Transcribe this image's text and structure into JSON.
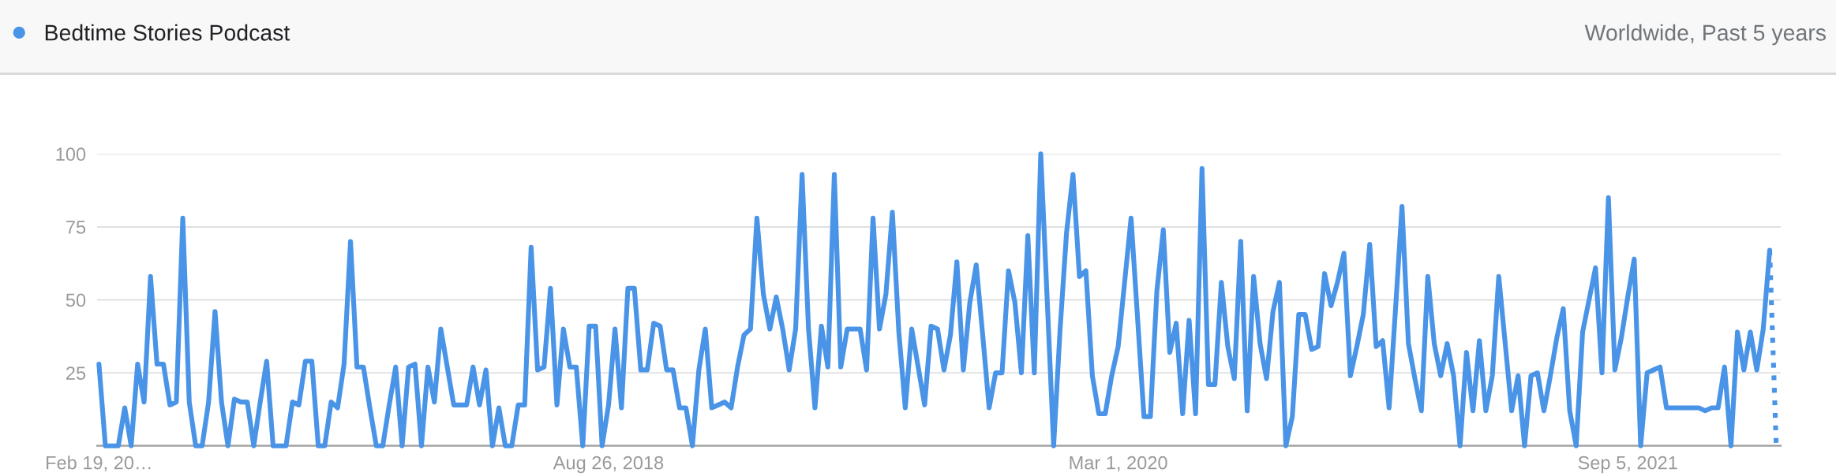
{
  "chart_data": {
    "type": "line",
    "subtitle": "Worldwide, Past 5 years",
    "x": [
      "2017-02-19",
      "2017-02-26",
      "2017-03-05",
      "2017-03-12",
      "2017-03-19",
      "2017-03-26",
      "2017-04-02",
      "2017-04-09",
      "2017-04-16",
      "2017-04-23",
      "2017-04-30",
      "2017-05-07",
      "2017-05-14",
      "2017-05-21",
      "2017-05-28",
      "2017-06-04",
      "2017-06-11",
      "2017-06-18",
      "2017-06-25",
      "2017-07-02",
      "2017-07-09",
      "2017-07-16",
      "2017-07-23",
      "2017-07-30",
      "2017-08-06",
      "2017-08-13",
      "2017-08-20",
      "2017-08-27",
      "2017-09-03",
      "2017-09-10",
      "2017-09-17",
      "2017-09-24",
      "2017-10-01",
      "2017-10-08",
      "2017-10-15",
      "2017-10-22",
      "2017-10-29",
      "2017-11-05",
      "2017-11-12",
      "2017-11-19",
      "2017-11-26",
      "2017-12-03",
      "2017-12-10",
      "2017-12-17",
      "2017-12-24",
      "2017-12-31",
      "2018-01-07",
      "2018-01-14",
      "2018-01-21",
      "2018-01-28",
      "2018-02-04",
      "2018-02-11",
      "2018-02-18",
      "2018-02-25",
      "2018-03-04",
      "2018-03-11",
      "2018-03-18",
      "2018-03-25",
      "2018-04-01",
      "2018-04-08",
      "2018-04-15",
      "2018-04-22",
      "2018-04-29",
      "2018-05-06",
      "2018-05-13",
      "2018-05-20",
      "2018-05-27",
      "2018-06-03",
      "2018-06-10",
      "2018-06-17",
      "2018-06-24",
      "2018-07-01",
      "2018-07-08",
      "2018-07-15",
      "2018-07-22",
      "2018-07-29",
      "2018-08-05",
      "2018-08-12",
      "2018-08-19",
      "2018-08-26",
      "2018-09-02",
      "2018-09-09",
      "2018-09-16",
      "2018-09-23",
      "2018-09-30",
      "2018-10-07",
      "2018-10-14",
      "2018-10-21",
      "2018-10-28",
      "2018-11-04",
      "2018-11-11",
      "2018-11-18",
      "2018-11-25",
      "2018-12-02",
      "2018-12-09",
      "2018-12-16",
      "2018-12-23",
      "2018-12-30",
      "2019-01-06",
      "2019-01-13",
      "2019-01-20",
      "2019-01-27",
      "2019-02-03",
      "2019-02-10",
      "2019-02-17",
      "2019-02-24",
      "2019-03-03",
      "2019-03-10",
      "2019-03-17",
      "2019-03-24",
      "2019-03-31",
      "2019-04-07",
      "2019-04-14",
      "2019-04-21",
      "2019-04-28",
      "2019-05-05",
      "2019-05-12",
      "2019-05-19",
      "2019-05-26",
      "2019-06-02",
      "2019-06-09",
      "2019-06-16",
      "2019-06-23",
      "2019-06-30",
      "2019-07-07",
      "2019-07-14",
      "2019-07-21",
      "2019-07-28",
      "2019-08-04",
      "2019-08-11",
      "2019-08-18",
      "2019-08-25",
      "2019-09-01",
      "2019-09-08",
      "2019-09-15",
      "2019-09-22",
      "2019-09-29",
      "2019-10-06",
      "2019-10-13",
      "2019-10-20",
      "2019-10-27",
      "2019-11-03",
      "2019-11-10",
      "2019-11-17",
      "2019-11-24",
      "2019-12-01",
      "2019-12-08",
      "2019-12-15",
      "2019-12-22",
      "2019-12-29",
      "2020-01-05",
      "2020-01-12",
      "2020-01-19",
      "2020-01-26",
      "2020-02-02",
      "2020-02-09",
      "2020-02-16",
      "2020-02-23",
      "2020-03-01",
      "2020-03-08",
      "2020-03-15",
      "2020-03-22",
      "2020-03-29",
      "2020-04-05",
      "2020-04-12",
      "2020-04-19",
      "2020-04-26",
      "2020-05-03",
      "2020-05-10",
      "2020-05-17",
      "2020-05-24",
      "2020-05-31",
      "2020-06-07",
      "2020-06-14",
      "2020-06-21",
      "2020-06-28",
      "2020-07-05",
      "2020-07-12",
      "2020-07-19",
      "2020-07-26",
      "2020-08-02",
      "2020-08-09",
      "2020-08-16",
      "2020-08-23",
      "2020-08-30",
      "2020-09-06",
      "2020-09-13",
      "2020-09-20",
      "2020-09-27",
      "2020-10-04",
      "2020-10-11",
      "2020-10-18",
      "2020-10-25",
      "2020-11-01",
      "2020-11-08",
      "2020-11-15",
      "2020-11-22",
      "2020-11-29",
      "2020-12-06",
      "2020-12-13",
      "2020-12-20",
      "2020-12-27",
      "2021-01-03",
      "2021-01-10",
      "2021-01-17",
      "2021-01-24",
      "2021-01-31",
      "2021-02-07",
      "2021-02-14",
      "2021-02-21",
      "2021-02-28",
      "2021-03-07",
      "2021-03-14",
      "2021-03-21",
      "2021-03-28",
      "2021-04-04",
      "2021-04-11",
      "2021-04-18",
      "2021-04-25",
      "2021-05-02",
      "2021-05-09",
      "2021-05-16",
      "2021-05-23",
      "2021-05-30",
      "2021-06-06",
      "2021-06-13",
      "2021-06-20",
      "2021-06-27",
      "2021-07-04",
      "2021-07-11",
      "2021-07-18",
      "2021-07-25",
      "2021-08-01",
      "2021-08-08",
      "2021-08-15",
      "2021-08-22",
      "2021-08-29",
      "2021-09-05",
      "2021-09-12",
      "2021-09-19",
      "2021-09-26",
      "2021-10-03",
      "2021-10-10",
      "2021-10-17",
      "2021-10-24",
      "2021-10-31",
      "2021-11-07",
      "2021-11-14",
      "2021-11-21",
      "2021-11-28",
      "2021-12-05",
      "2021-12-12",
      "2021-12-19",
      "2021-12-26",
      "2022-01-02",
      "2022-01-09",
      "2022-01-16",
      "2022-01-23",
      "2022-01-30",
      "2022-02-06"
    ],
    "series": [
      {
        "name": "Bedtime Stories Podcast",
        "color": "#4a94e8",
        "line_style": "solid",
        "values": [
          28,
          0,
          0,
          0,
          13,
          0,
          28,
          15,
          58,
          28,
          28,
          14,
          15,
          78,
          15,
          0,
          0,
          15,
          46,
          15,
          0,
          16,
          15,
          15,
          0,
          15,
          29,
          0,
          0,
          0,
          15,
          14,
          29,
          29,
          0,
          0,
          15,
          13,
          28,
          70,
          27,
          27,
          13,
          0,
          0,
          14,
          27,
          0,
          27,
          28,
          0,
          27,
          15,
          40,
          27,
          14,
          14,
          14,
          27,
          14,
          26,
          0,
          13,
          0,
          0,
          14,
          14,
          68,
          26,
          27,
          54,
          14,
          40,
          27,
          27,
          0,
          41,
          41,
          0,
          14,
          40,
          13,
          54,
          54,
          26,
          26,
          42,
          41,
          26,
          26,
          13,
          13,
          0,
          26,
          40,
          13,
          14,
          15,
          13,
          27,
          38,
          40,
          78,
          52,
          40,
          51,
          40,
          26,
          40,
          93,
          40,
          13,
          41,
          27,
          93,
          27,
          40,
          40,
          40,
          26,
          78,
          40,
          52,
          80,
          39,
          13,
          40,
          27,
          14,
          41,
          40,
          26,
          38,
          63,
          26,
          49,
          62,
          38,
          13,
          25,
          25,
          60,
          49,
          25,
          72,
          25,
          100,
          50,
          0,
          40,
          73,
          93,
          58,
          60,
          24,
          11,
          11,
          24,
          34,
          56,
          78,
          44,
          10,
          10,
          53,
          74,
          32,
          42,
          11,
          43,
          11,
          95,
          21,
          21,
          56,
          34,
          23,
          70,
          12,
          58,
          35,
          23,
          46,
          56,
          0,
          10,
          45,
          45,
          33,
          34,
          59,
          48,
          56,
          66,
          24,
          34,
          45,
          69,
          34,
          36,
          13,
          47,
          82,
          35,
          23,
          12,
          58,
          35,
          24,
          35,
          24,
          0,
          32,
          12,
          36,
          12,
          24,
          58,
          35,
          12,
          24,
          0,
          24,
          25,
          12,
          24,
          37,
          47,
          12,
          0,
          39,
          50,
          61,
          25,
          85,
          26,
          37,
          51,
          64,
          0,
          25,
          26,
          27,
          13,
          13,
          13,
          13,
          13,
          13,
          12,
          13,
          13,
          27,
          0,
          39,
          26,
          39,
          26,
          40,
          67
        ]
      },
      {
        "color": "#4a94e8",
        "line_style": "dotted",
        "x": [
          "2022-02-06",
          "2022-02-13"
        ],
        "values": [
          67,
          1
        ]
      }
    ],
    "xlim": [
      "2017-02-17",
      "2022-02-18"
    ],
    "xticks": [
      {
        "value": "2017-02-19",
        "label": "Feb 19, 20…"
      },
      {
        "value": "2018-08-26",
        "label": "Aug 26, 2018"
      },
      {
        "value": "2020-03-01",
        "label": "Mar 1, 2020"
      },
      {
        "value": "2021-09-05",
        "label": "Sep 5, 2021"
      }
    ],
    "ylim": [
      0,
      100
    ],
    "yticks": [
      {
        "value": 0,
        "label": null
      },
      25,
      50,
      75,
      100
    ],
    "grid": "y",
    "legend": "top left"
  }
}
